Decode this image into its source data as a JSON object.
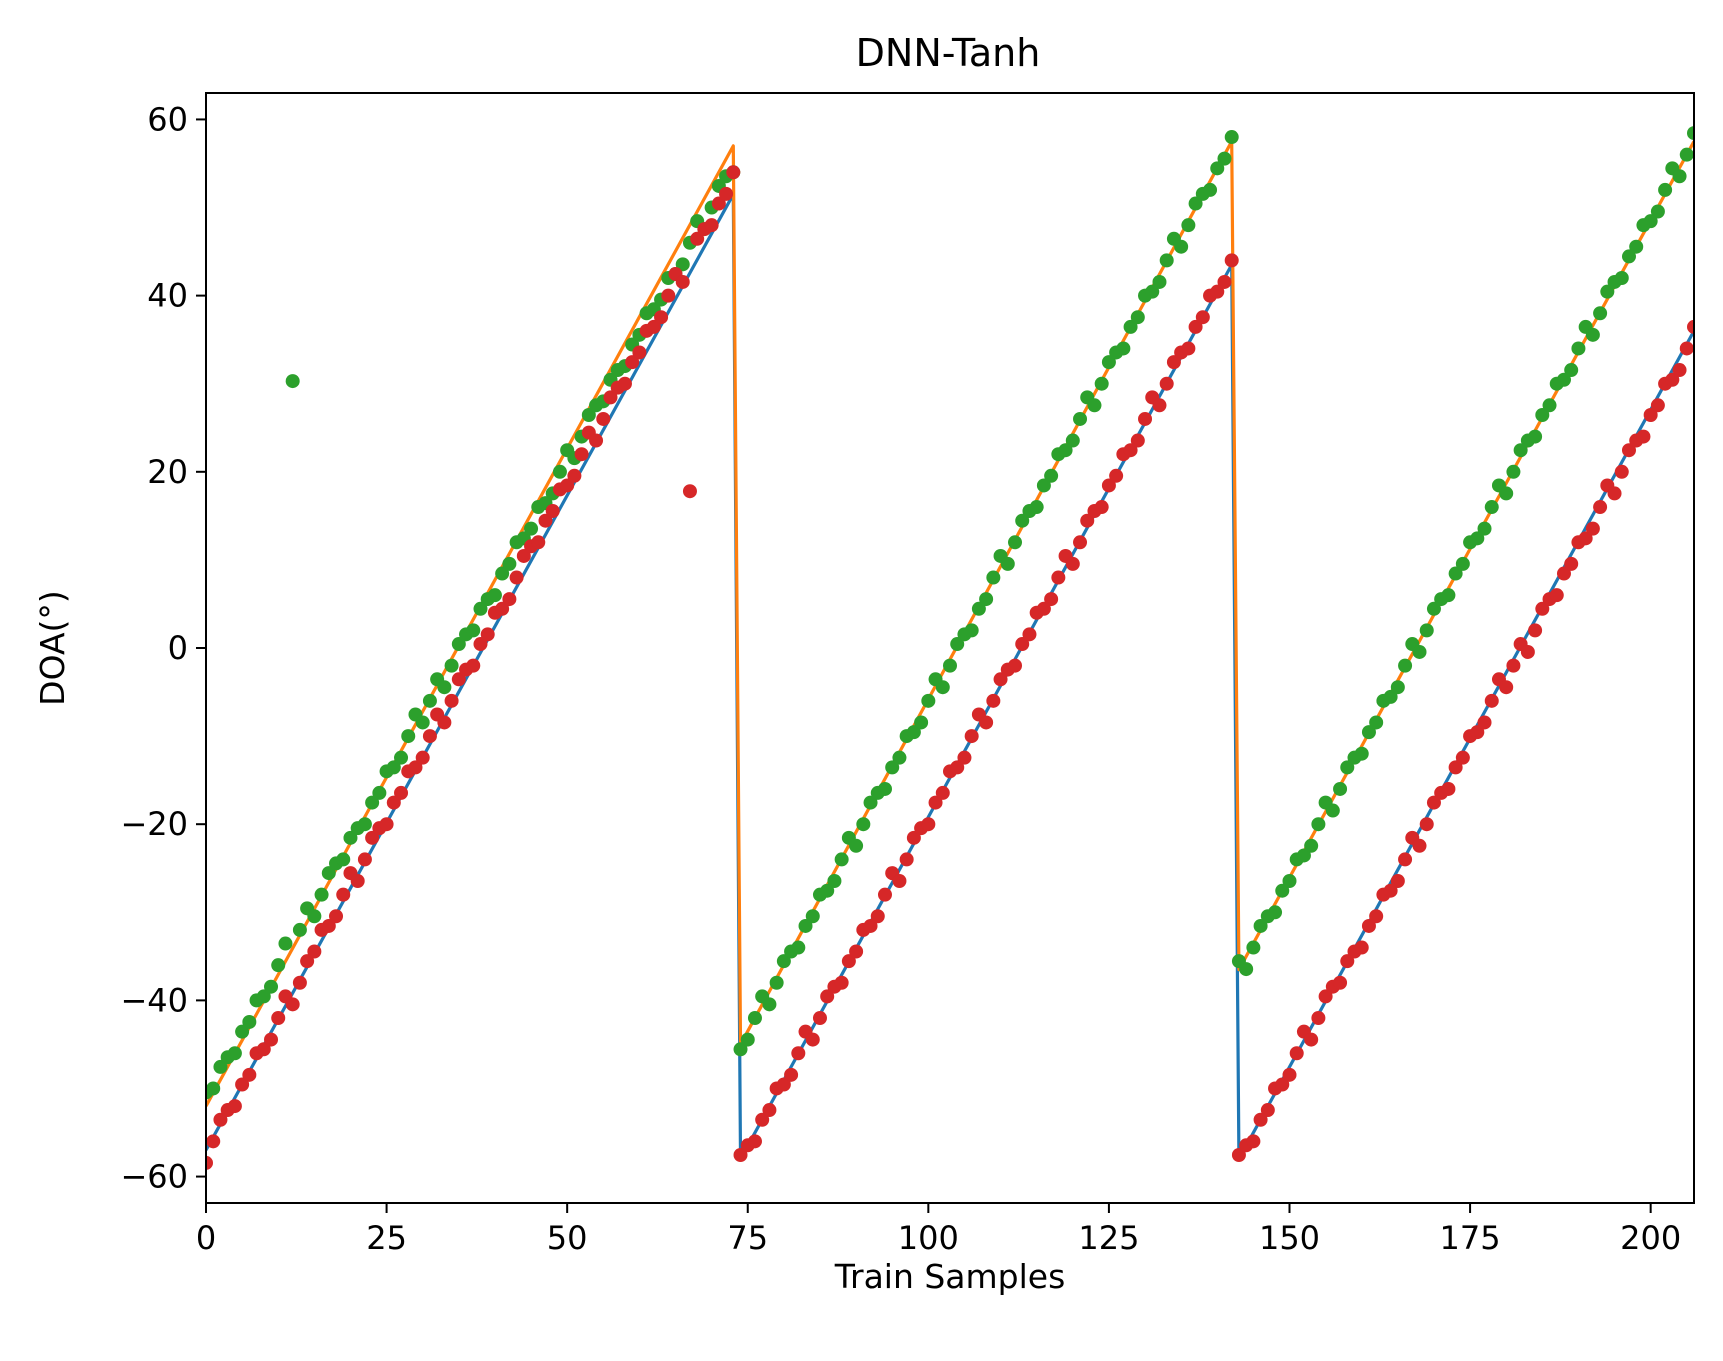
{
  "chart_data": {
    "type": "line",
    "title": "DNN-Tanh",
    "xlabel": "Train Samples",
    "ylabel": "DOA(°)",
    "xlim": [
      0,
      206
    ],
    "ylim": [
      -63,
      63
    ],
    "xticks": [
      0,
      25,
      50,
      75,
      100,
      125,
      150,
      175,
      200
    ],
    "yticks": [
      -60,
      -40,
      -20,
      0,
      20,
      40,
      60
    ],
    "ytick_labels": [
      "−60",
      "−40",
      "−20",
      "0",
      "20",
      "40",
      "60"
    ],
    "grid": false,
    "legend": "none",
    "colors": {
      "blue_line": "#1f77b4",
      "orange_line": "#ff7f0e",
      "green_points": "#2ca02c",
      "red_points": "#d62728"
    },
    "segments": [
      {
        "x_start": 0,
        "x_end": 73
      },
      {
        "x_start": 74,
        "x_end": 142
      },
      {
        "x_start": 143,
        "x_end": 206
      }
    ],
    "series": [
      {
        "kind": "line",
        "color_key": "blue_line",
        "points": [
          [
            0,
            -57.0
          ],
          [
            73,
            51.5
          ],
          [
            74,
            -58.0
          ],
          [
            142,
            43.5
          ],
          [
            143,
            -58.0
          ],
          [
            206,
            36.0
          ]
        ]
      },
      {
        "kind": "line",
        "color_key": "orange_line",
        "points": [
          [
            0,
            -52.0
          ],
          [
            73,
            57.0
          ],
          [
            74,
            -45.0
          ],
          [
            142,
            57.5
          ],
          [
            143,
            -36.5
          ],
          [
            206,
            57.5
          ]
        ]
      },
      {
        "kind": "scatter",
        "color_key": "green_points",
        "segment_fits": [
          {
            "x_start": 0,
            "x_end": 73,
            "y_start": -50.8,
            "y_end": 54.5
          },
          {
            "x_start": 74,
            "x_end": 142,
            "y_start": -45.5,
            "y_end": 57.5
          },
          {
            "x_start": 143,
            "x_end": 206,
            "y_start": -36.5,
            "y_end": 57.5
          }
        ],
        "outliers": [
          [
            12,
            30.3
          ]
        ]
      },
      {
        "kind": "scatter",
        "color_key": "red_points",
        "segment_fits": [
          {
            "x_start": 0,
            "x_end": 73,
            "y_start": -57.2,
            "y_end": 53.5
          },
          {
            "x_start": 74,
            "x_end": 142,
            "y_start": -58.2,
            "y_end": 43.5
          },
          {
            "x_start": 143,
            "x_end": 206,
            "y_start": -58.2,
            "y_end": 35.0
          }
        ],
        "outliers": [
          [
            67,
            17.8
          ]
        ]
      }
    ]
  }
}
